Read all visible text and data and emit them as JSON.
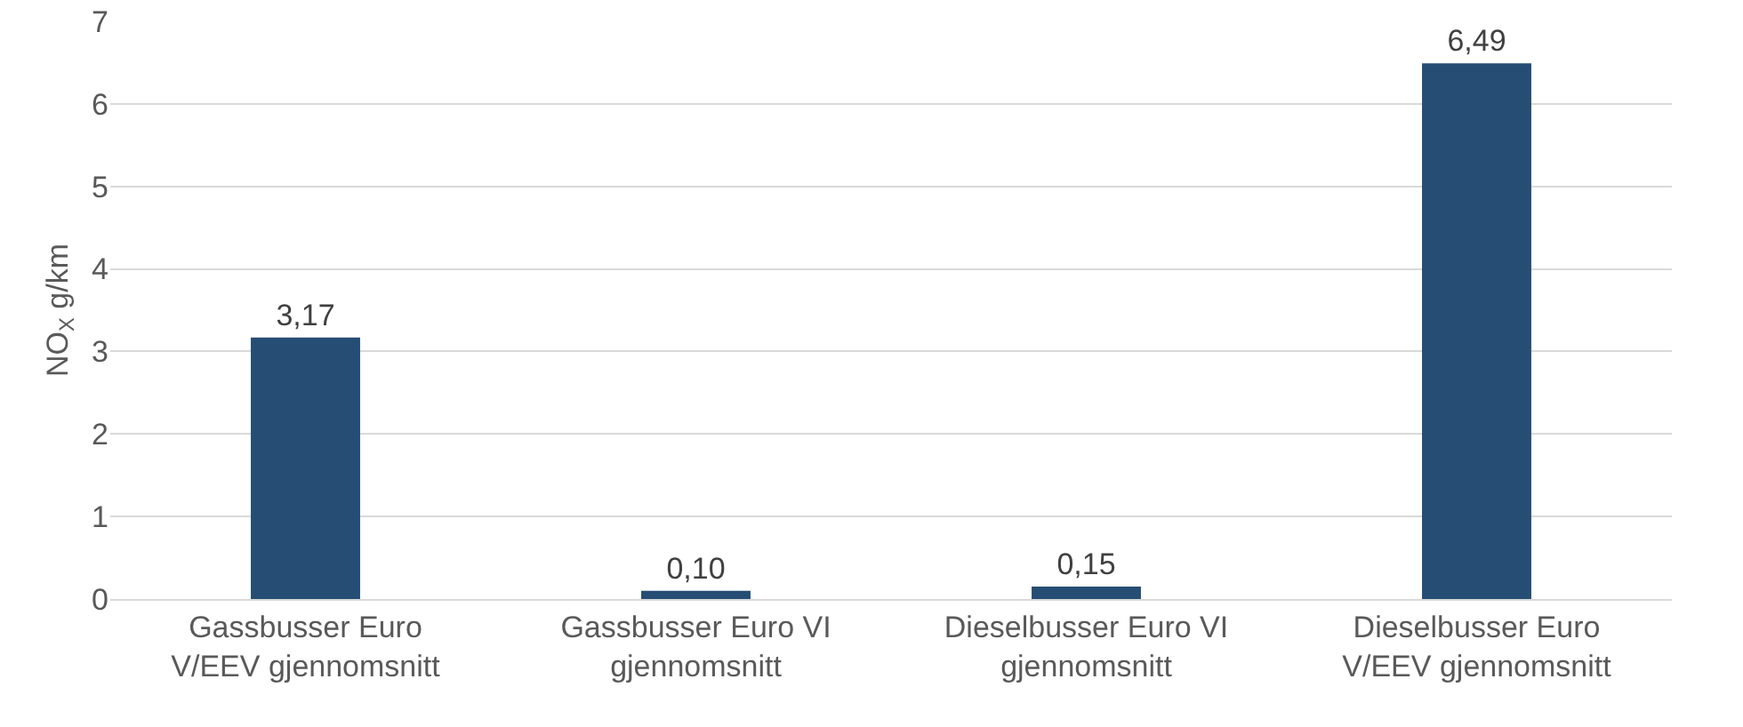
{
  "chart_data": {
    "type": "bar",
    "ylabel": "NO$_{X}$ g/km",
    "categories": [
      "Gassbusser Euro V/EEV gjennomsnitt",
      "Gassbusser Euro VI gjennomsnitt",
      "Dieselbusser Euro VI gjennomsnitt",
      "Dieselbusser Euro V/EEV gjennomsnitt"
    ],
    "values": [
      3.17,
      0.1,
      0.15,
      6.49
    ],
    "value_labels": [
      "3,17",
      "0,10",
      "0,15",
      "6,49"
    ],
    "color": "#264d73",
    "ylim": [
      0,
      7
    ],
    "yticks": [
      0,
      1,
      2,
      3,
      4,
      5,
      6,
      7
    ],
    "grid": "y"
  }
}
